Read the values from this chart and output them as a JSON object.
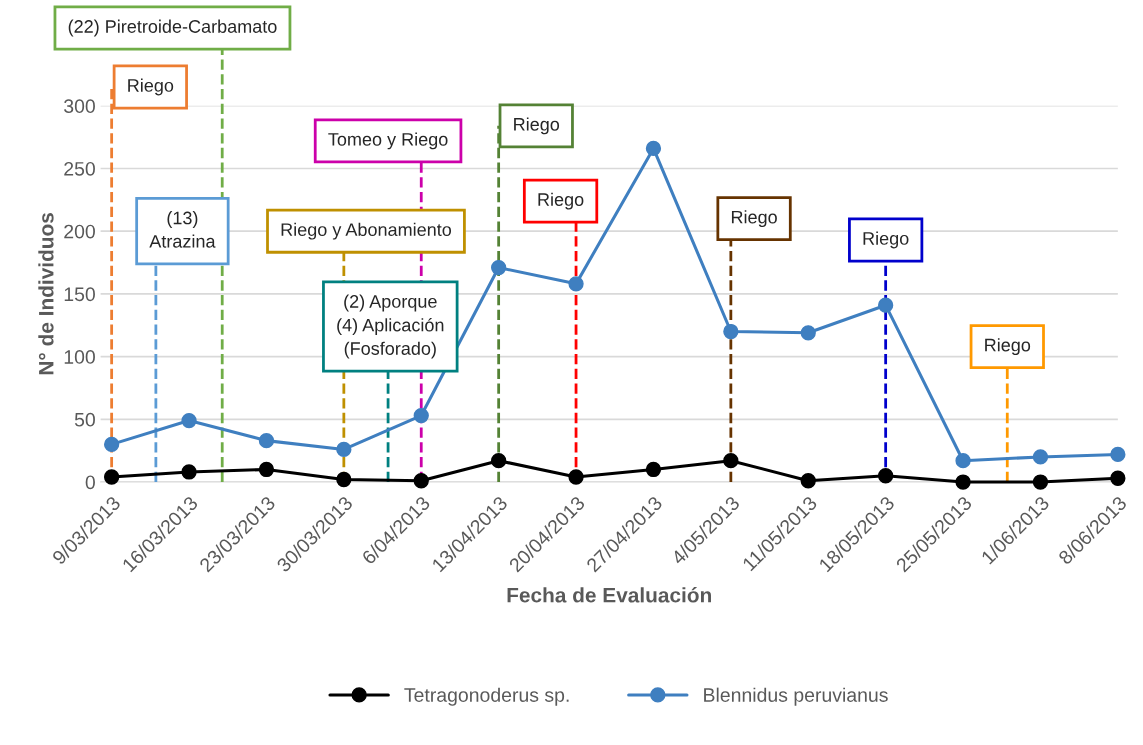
{
  "chart_data": {
    "type": "line",
    "xlabel": "Fecha de Evaluación",
    "ylabel": "N° de Individuos",
    "x": [
      "2013-03-09",
      "2013-03-16",
      "2013-03-23",
      "2013-03-30",
      "2013-04-06",
      "2013-04-13",
      "2013-04-20",
      "2013-04-27",
      "2013-05-04",
      "2013-05-11",
      "2013-05-18",
      "2013-05-25",
      "2013-06-01",
      "2013-06-08"
    ],
    "series": [
      {
        "name": "Tetragonoderus sp.",
        "color": "#000000",
        "values": [
          4,
          8,
          10,
          2,
          1,
          17,
          4,
          10,
          17,
          1,
          5,
          0,
          0,
          3
        ]
      },
      {
        "name": "Blennidus peruvianus",
        "color": "#3f7fc0",
        "values": [
          30,
          49,
          33,
          26,
          53,
          171,
          158,
          266,
          120,
          119,
          141,
          17,
          20,
          22
        ]
      }
    ],
    "xlim": [
      "2013-03-08",
      "2013-06-08"
    ],
    "xticks": [
      {
        "value": "2013-03-09",
        "label": "9/03/2013"
      },
      {
        "value": "2013-03-16",
        "label": "16/03/2013"
      },
      {
        "value": "2013-03-23",
        "label": "23/03/2013"
      },
      {
        "value": "2013-03-30",
        "label": "30/03/2013"
      },
      {
        "value": "2013-04-06",
        "label": "6/04/2013"
      },
      {
        "value": "2013-04-13",
        "label": "13/04/2013"
      },
      {
        "value": "2013-04-20",
        "label": "20/04/2013"
      },
      {
        "value": "2013-04-27",
        "label": "27/04/2013"
      },
      {
        "value": "2013-05-04",
        "label": "4/05/2013"
      },
      {
        "value": "2013-05-11",
        "label": "11/05/2013"
      },
      {
        "value": "2013-05-18",
        "label": "18/05/2013"
      },
      {
        "value": "2013-05-25",
        "label": "25/05/2013"
      },
      {
        "value": "2013-06-01",
        "label": "1/06/2013"
      },
      {
        "value": "2013-06-08",
        "label": "8/06/2013"
      }
    ],
    "ylim": [
      0,
      300
    ],
    "yticks": [
      0,
      50,
      100,
      150,
      200,
      250,
      300
    ],
    "grid": "y",
    "legend": "bottom",
    "marker": "circle",
    "line_style": "solid",
    "ref_lines": [
      {
        "axis": "x",
        "value": "2013-03-09",
        "label": "Riego",
        "color": "#ed7d31",
        "line_style": "dashed"
      },
      {
        "axis": "x",
        "value": "2013-03-13",
        "label": "(13)\nAtrazina",
        "color": "#5b9bd5",
        "line_style": "dashed"
      },
      {
        "axis": "x",
        "value": "2013-03-19",
        "label": "(22) Piretroide-Carbamato",
        "color": "#70ad47",
        "line_style": "dashed"
      },
      {
        "axis": "x",
        "value": "2013-03-30",
        "label": "Riego y Abonamiento",
        "color": "#bf9000",
        "line_style": "dashed"
      },
      {
        "axis": "x",
        "value": "2013-04-03",
        "label": "(2) Aporque\n(4) Aplicación\n(Fosforado)",
        "color": "#008080",
        "line_style": "dashed"
      },
      {
        "axis": "x",
        "value": "2013-04-06",
        "label": "Tomeo y Riego",
        "color": "#cc00aa",
        "line_style": "dashed"
      },
      {
        "axis": "x",
        "value": "2013-04-13",
        "label": "Riego",
        "color": "#548235",
        "line_style": "dashed"
      },
      {
        "axis": "x",
        "value": "2013-04-20",
        "label": "Riego",
        "color": "#ff0000",
        "line_style": "dashed"
      },
      {
        "axis": "x",
        "value": "2013-05-04",
        "label": "Riego",
        "color": "#663300",
        "line_style": "dashed"
      },
      {
        "axis": "x",
        "value": "2013-05-18",
        "label": "Riego",
        "color": "#0000cc",
        "line_style": "dashed"
      },
      {
        "axis": "x",
        "value": "2013-05-29",
        "label": "Riego",
        "color": "#ff9900",
        "line_style": "dashed"
      }
    ]
  }
}
